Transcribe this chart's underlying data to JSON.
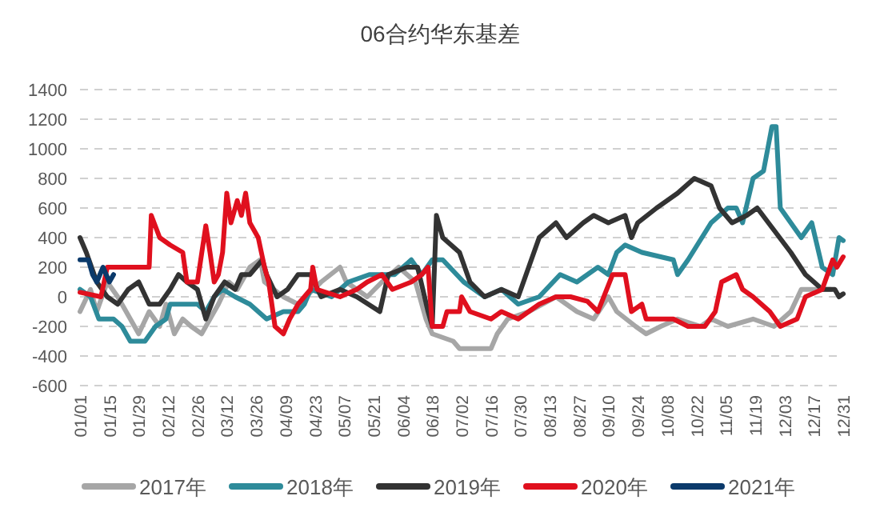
{
  "chart_data": {
    "type": "line",
    "title": "06合约华东基差",
    "xlim": [
      "--01-01",
      "--12-31"
    ],
    "xticks": [
      {
        "value": "--01-01",
        "label": "01/01"
      },
      {
        "value": "--01-15",
        "label": "01/15"
      },
      {
        "value": "--01-29",
        "label": "01/29"
      },
      {
        "value": "--02-12",
        "label": "02/12"
      },
      {
        "value": "--02-26",
        "label": "02/26"
      },
      {
        "value": "--03-12",
        "label": "03/12"
      },
      {
        "value": "--03-26",
        "label": "03/26"
      },
      {
        "value": "--04-09",
        "label": "04/09"
      },
      {
        "value": "--04-23",
        "label": "04/23"
      },
      {
        "value": "--05-07",
        "label": "05/07"
      },
      {
        "value": "--05-21",
        "label": "05/21"
      },
      {
        "value": "--06-04",
        "label": "06/04"
      },
      {
        "value": "--06-18",
        "label": "06/18"
      },
      {
        "value": "--07-02",
        "label": "07/02"
      },
      {
        "value": "--07-16",
        "label": "07/16"
      },
      {
        "value": "--07-30",
        "label": "07/30"
      },
      {
        "value": "--08-13",
        "label": "08/13"
      },
      {
        "value": "--08-27",
        "label": "08/27"
      },
      {
        "value": "--09-10",
        "label": "09/10"
      },
      {
        "value": "--09-24",
        "label": "09/24"
      },
      {
        "value": "--10-08",
        "label": "10/08"
      },
      {
        "value": "--10-22",
        "label": "10/22"
      },
      {
        "value": "--11-05",
        "label": "11/05"
      },
      {
        "value": "--11-19",
        "label": "11/19"
      },
      {
        "value": "--12-03",
        "label": "12/03"
      },
      {
        "value": "--12-17",
        "label": "12/17"
      },
      {
        "value": "--12-31",
        "label": "12/31"
      }
    ],
    "ylim": [
      -600,
      1400
    ],
    "yticks": [
      -600,
      -400,
      -200,
      0,
      200,
      400,
      600,
      800,
      1000,
      1200,
      1400
    ],
    "grid": "y",
    "legend": "bottom",
    "line_style": "solid",
    "series": [
      {
        "name": "2017年",
        "color": "#a6a6a6",
        "x": [
          "--01-01",
          "--01-06",
          "--01-09",
          "--01-14",
          "--01-19",
          "--01-25",
          "--01-29",
          "--02-03",
          "--02-08",
          "--02-11",
          "--02-15",
          "--02-19",
          "--02-23",
          "--02-28",
          "--03-04",
          "--03-08",
          "--03-13",
          "--03-17",
          "--03-23",
          "--03-28",
          "--03-30",
          "--04-08",
          "--04-15",
          "--04-26",
          "--05-05",
          "--05-08",
          "--05-18",
          "--05-25",
          "--06-02",
          "--06-10",
          "--06-15",
          "--06-18",
          "--06-28",
          "--07-01",
          "--07-16",
          "--07-19",
          "--07-24",
          "--08-03",
          "--08-16",
          "--08-26",
          "--09-03",
          "--09-10",
          "--09-14",
          "--09-23",
          "--09-28",
          "--10-05",
          "--10-13",
          "--10-24",
          "--10-29",
          "--11-06",
          "--11-18",
          "--11-28",
          "--12-06",
          "--12-11",
          "--12-21",
          "--12-25"
        ],
        "values": [
          -100,
          50,
          -100,
          100,
          0,
          -150,
          -250,
          -100,
          -200,
          -50,
          -250,
          -150,
          -200,
          -250,
          -150,
          -50,
          100,
          50,
          200,
          250,
          100,
          0,
          -50,
          100,
          200,
          100,
          0,
          100,
          200,
          100,
          -150,
          -250,
          -300,
          -350,
          -350,
          -250,
          -150,
          -100,
          0,
          -100,
          -150,
          0,
          -100,
          -200,
          -250,
          -200,
          -150,
          -200,
          -150,
          -200,
          -150,
          -200,
          -100,
          50,
          50,
          50
        ]
      },
      {
        "name": "2018年",
        "color": "#2e8b9a",
        "x": [
          "--01-01",
          "--01-06",
          "--01-10",
          "--01-17",
          "--01-21",
          "--01-25",
          "--02-01",
          "--02-06",
          "--02-11",
          "--02-13",
          "--02-26",
          "--03-02",
          "--03-06",
          "--03-10",
          "--03-16",
          "--03-23",
          "--03-31",
          "--04-08",
          "--04-15",
          "--04-18",
          "--04-21",
          "--05-01",
          "--05-09",
          "--05-19",
          "--05-31",
          "--06-08",
          "--06-13",
          "--06-18",
          "--06-23",
          "--07-03",
          "--07-13",
          "--07-21",
          "--07-29",
          "--08-08",
          "--08-18",
          "--08-26",
          "--09-05",
          "--09-10",
          "--09-14",
          "--09-18",
          "--09-26",
          "--10-11",
          "--10-13",
          "--10-18",
          "--10-29",
          "--11-06",
          "--11-10",
          "--11-13",
          "--11-18",
          "--11-23",
          "--11-27",
          "--11-29",
          "--12-01",
          "--12-06",
          "--12-11",
          "--12-16",
          "--12-21",
          "--12-26",
          "--12-29",
          "--12-31"
        ],
        "values": [
          50,
          0,
          -150,
          -150,
          -200,
          -300,
          -300,
          -200,
          -150,
          -50,
          -50,
          -100,
          0,
          50,
          0,
          -50,
          -150,
          -100,
          -100,
          -50,
          50,
          0,
          100,
          150,
          150,
          250,
          150,
          250,
          250,
          100,
          0,
          50,
          -50,
          0,
          150,
          100,
          200,
          150,
          300,
          350,
          300,
          250,
          150,
          250,
          500,
          600,
          600,
          500,
          800,
          850,
          1150,
          1150,
          600,
          500,
          400,
          500,
          200,
          150,
          400,
          380
        ]
      },
      {
        "name": "2019年",
        "color": "#333333",
        "x": [
          "--01-01",
          "--01-04",
          "--01-09",
          "--01-14",
          "--01-19",
          "--01-24",
          "--01-29",
          "--02-03",
          "--02-08",
          "--02-13",
          "--02-17",
          "--02-21",
          "--02-26",
          "--03-02",
          "--03-06",
          "--03-11",
          "--03-16",
          "--03-19",
          "--03-23",
          "--03-29",
          "--03-31",
          "--04-05",
          "--04-10",
          "--04-15",
          "--04-21",
          "--04-26",
          "--05-05",
          "--05-13",
          "--05-24",
          "--05-28",
          "--06-06",
          "--06-11",
          "--06-16",
          "--06-18",
          "--06-20",
          "--06-23",
          "--07-01",
          "--07-06",
          "--07-13",
          "--07-21",
          "--07-29",
          "--08-03",
          "--08-08",
          "--08-16",
          "--08-21",
          "--08-29",
          "--09-03",
          "--09-10",
          "--09-18",
          "--09-21",
          "--09-24",
          "--10-03",
          "--10-13",
          "--10-21",
          "--10-29",
          "--11-02",
          "--11-08",
          "--11-15",
          "--11-20",
          "--11-28",
          "--12-06",
          "--12-13",
          "--12-21",
          "--12-27",
          "--12-29",
          "--12-31"
        ],
        "values": [
          400,
          300,
          100,
          0,
          -50,
          50,
          100,
          -50,
          -50,
          50,
          150,
          100,
          50,
          -150,
          0,
          100,
          50,
          150,
          150,
          250,
          150,
          0,
          50,
          150,
          150,
          0,
          50,
          0,
          -100,
          150,
          200,
          200,
          -100,
          -200,
          550,
          400,
          300,
          100,
          0,
          50,
          0,
          200,
          400,
          500,
          400,
          500,
          550,
          500,
          550,
          400,
          500,
          600,
          700,
          800,
          750,
          600,
          500,
          550,
          600,
          450,
          300,
          150,
          50,
          50,
          0,
          20
        ]
      },
      {
        "name": "2020年",
        "color": "#e0101e",
        "x": [
          "--01-01",
          "--01-11",
          "--01-14",
          "--02-03",
          "--02-04",
          "--02-08",
          "--02-13",
          "--02-19",
          "--02-21",
          "--02-26",
          "--03-02",
          "--03-04",
          "--03-06",
          "--03-08",
          "--03-10",
          "--03-12",
          "--03-14",
          "--03-17",
          "--03-19",
          "--03-21",
          "--03-23",
          "--03-27",
          "--03-30",
          "--04-01",
          "--04-04",
          "--04-08",
          "--04-11",
          "--04-15",
          "--04-18",
          "--04-21",
          "--04-22",
          "--04-24",
          "--05-05",
          "--05-13",
          "--05-18",
          "--05-25",
          "--05-30",
          "--06-08",
          "--06-13",
          "--06-16",
          "--06-18",
          "--06-23",
          "--06-25",
          "--07-01",
          "--07-02",
          "--07-06",
          "--07-16",
          "--07-21",
          "--07-29",
          "--08-08",
          "--08-16",
          "--08-23",
          "--08-31",
          "--09-05",
          "--09-12",
          "--09-18",
          "--09-21",
          "--09-26",
          "--09-28",
          "--10-11",
          "--10-18",
          "--10-26",
          "--10-31",
          "--11-03",
          "--11-10",
          "--11-13",
          "--11-18",
          "--11-26",
          "--12-01",
          "--12-09",
          "--12-13",
          "--12-21",
          "--12-26",
          "--12-28",
          "--12-31"
        ],
        "values": [
          30,
          0,
          200,
          200,
          550,
          400,
          350,
          300,
          100,
          100,
          480,
          300,
          100,
          150,
          300,
          700,
          500,
          650,
          550,
          700,
          500,
          400,
          200,
          100,
          -200,
          -250,
          -150,
          -50,
          0,
          50,
          200,
          50,
          0,
          50,
          100,
          150,
          50,
          100,
          150,
          200,
          -200,
          -200,
          -100,
          -100,
          0,
          -100,
          -150,
          -100,
          -150,
          -50,
          0,
          0,
          -30,
          -100,
          150,
          150,
          -100,
          -50,
          -150,
          -150,
          -200,
          -200,
          -100,
          100,
          150,
          50,
          0,
          -100,
          -200,
          -150,
          0,
          50,
          250,
          200,
          270
        ]
      },
      {
        "name": "2021年",
        "color": "#0b3a6b",
        "x": [
          "--01-01",
          "--01-05",
          "--01-07",
          "--01-09",
          "--01-12",
          "--01-15",
          "--01-17"
        ],
        "values": [
          250,
          250,
          150,
          100,
          200,
          100,
          150
        ]
      }
    ]
  }
}
